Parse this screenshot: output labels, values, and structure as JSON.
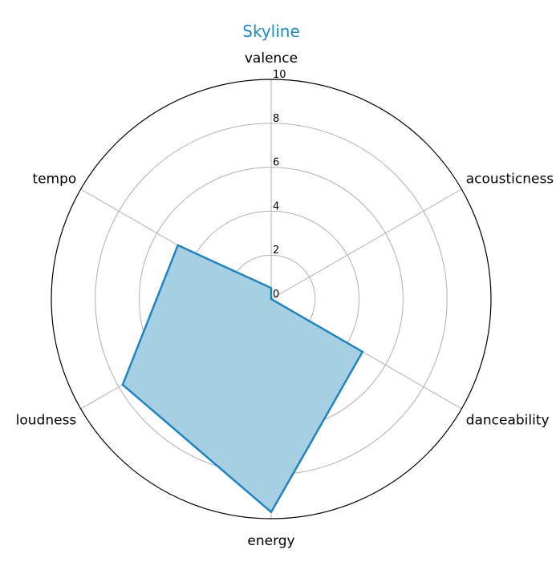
{
  "chart_data": {
    "type": "radar",
    "title": "Skyline",
    "axes": [
      "valence",
      "acousticness",
      "danceability",
      "energy",
      "loudness",
      "tempo"
    ],
    "series": [
      {
        "values": [
          0.5,
          0.0,
          4.8,
          9.7,
          7.8,
          4.9
        ]
      }
    ],
    "rlim": [
      0,
      10
    ],
    "rticks": [
      0,
      2,
      4,
      6,
      8,
      10
    ],
    "grid": true,
    "colors": {
      "title": "#1f8ac0",
      "line": "#1f84be",
      "fill": "#a7cfe4",
      "grid": "#b0b0b0",
      "outer_ring": "#000000"
    }
  }
}
